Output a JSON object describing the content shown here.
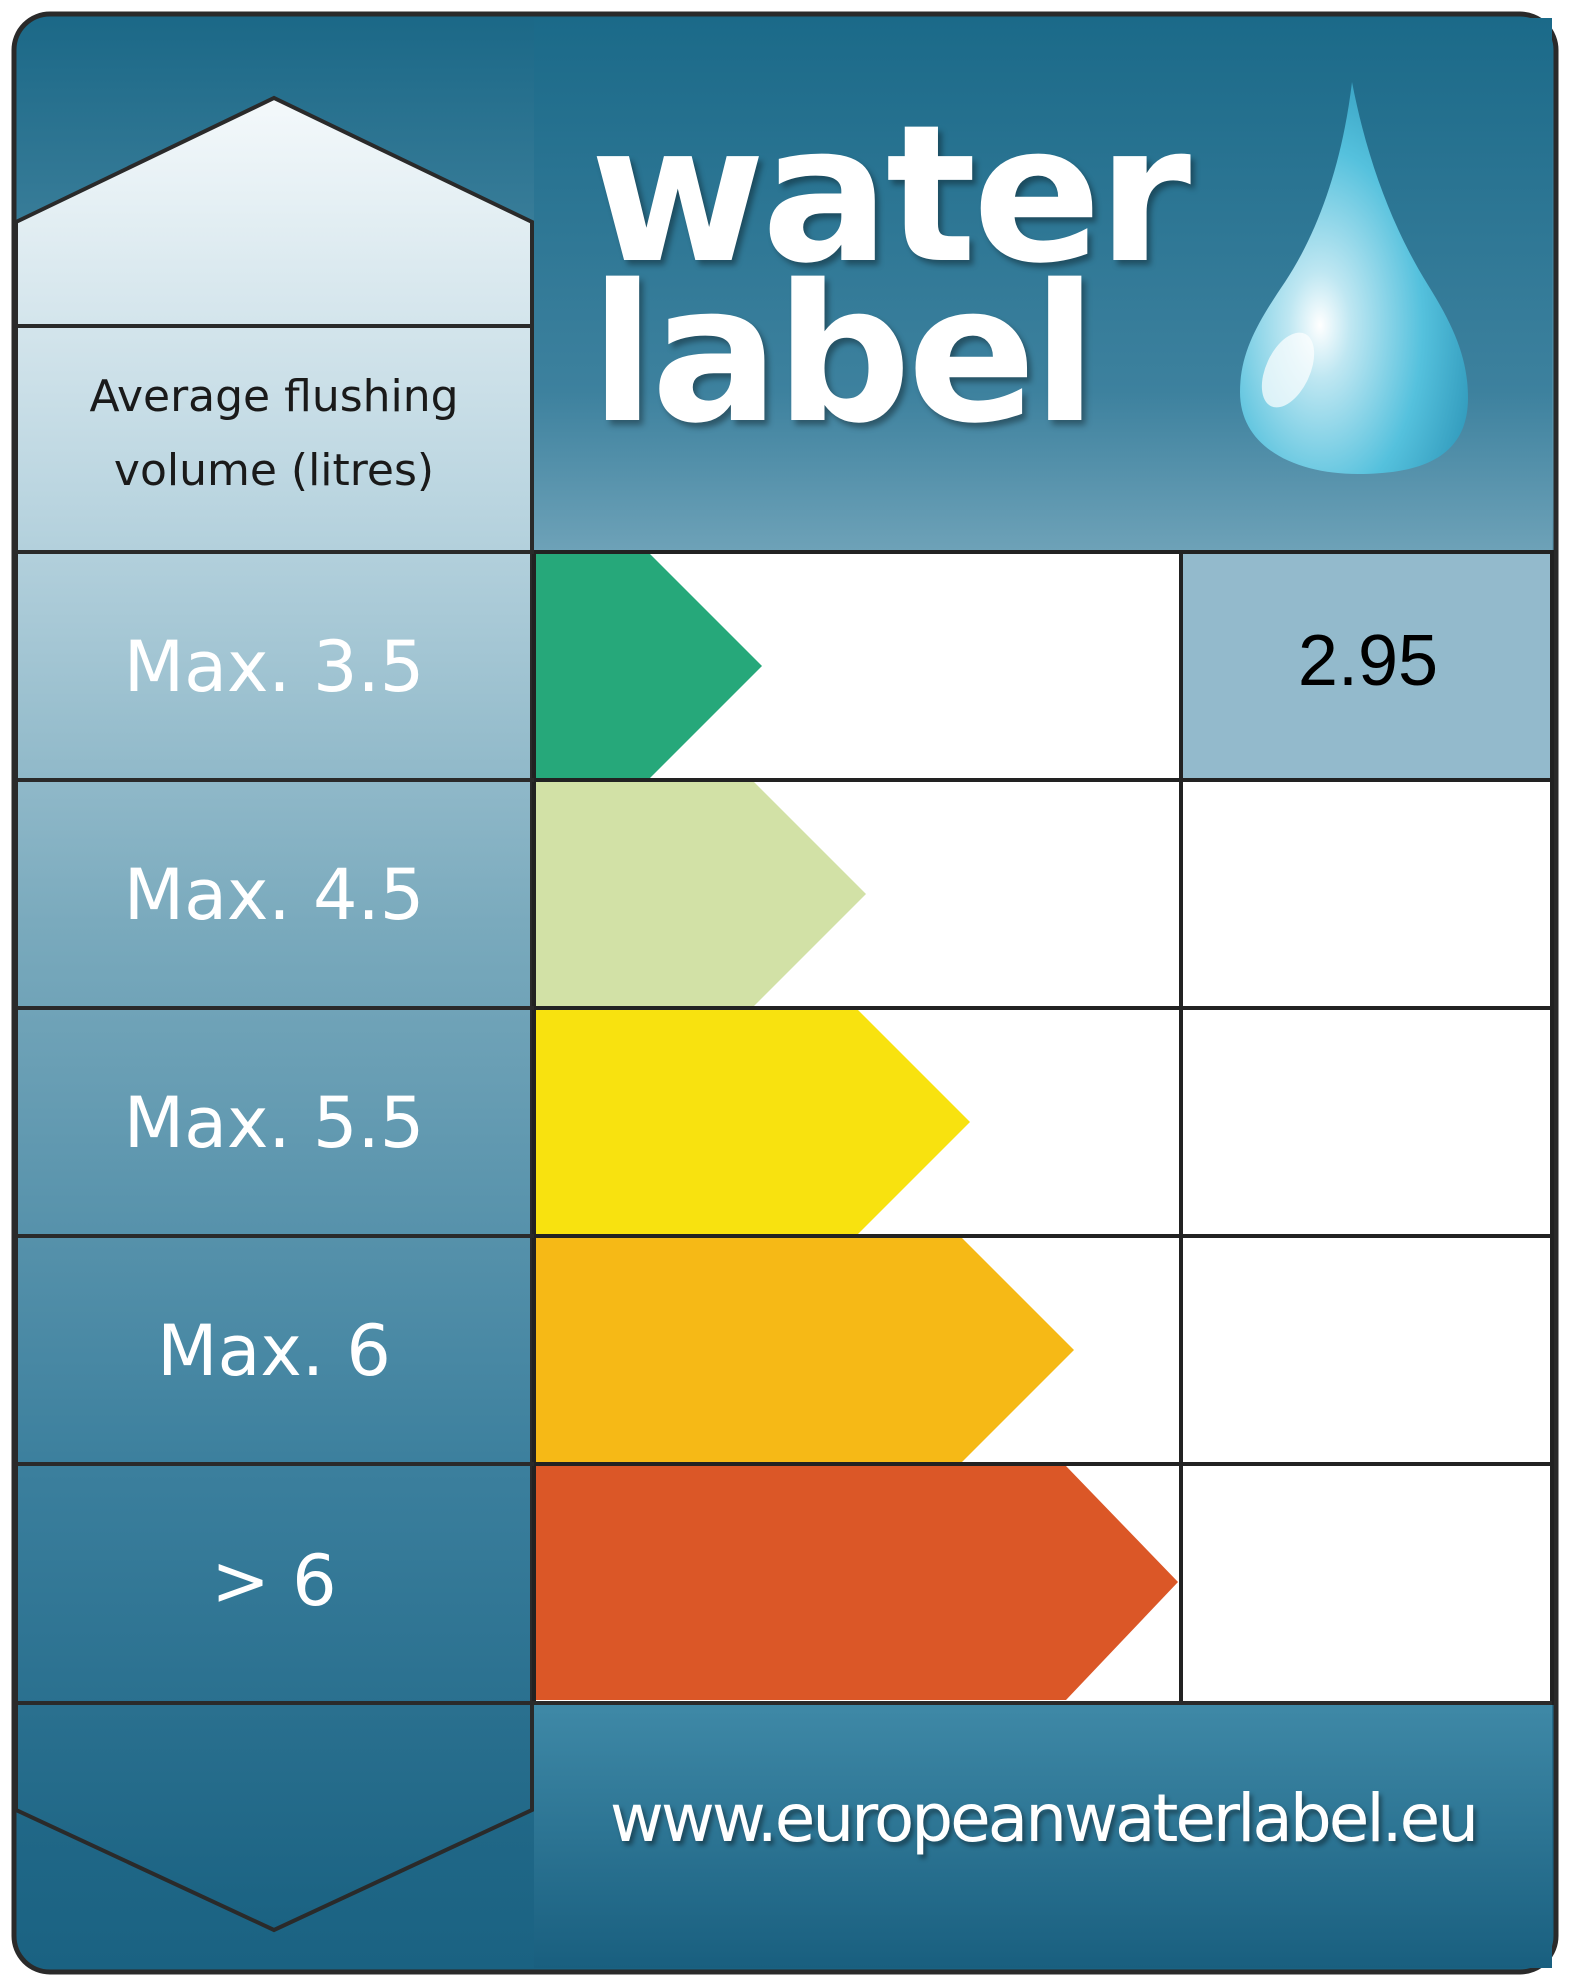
{
  "brand": {
    "title_line1": "water",
    "title_line2": "label",
    "url": "www.europeanwaterlabel.eu",
    "icon": "water-drop-icon"
  },
  "column_header": "Average flushing\nvolume (litres)",
  "rows": [
    {
      "label": "Max. 3.5",
      "color": "#26a87a",
      "value": "2.95",
      "active": true
    },
    {
      "label": "Max. 4.5",
      "color": "#d2e1a6",
      "value": "",
      "active": false
    },
    {
      "label": "Max. 5.5",
      "color": "#f8e20f",
      "value": "",
      "active": false
    },
    {
      "label": "Max. 6",
      "color": "#f6b916",
      "value": "",
      "active": false
    },
    {
      "label": "> 6",
      "color": "#db5727",
      "value": "",
      "active": false
    }
  ],
  "colors": {
    "frame_dark": "#1b6685",
    "frame_light": "#8fb9cc",
    "active_cell": "#93bacc",
    "outline": "#222222"
  }
}
